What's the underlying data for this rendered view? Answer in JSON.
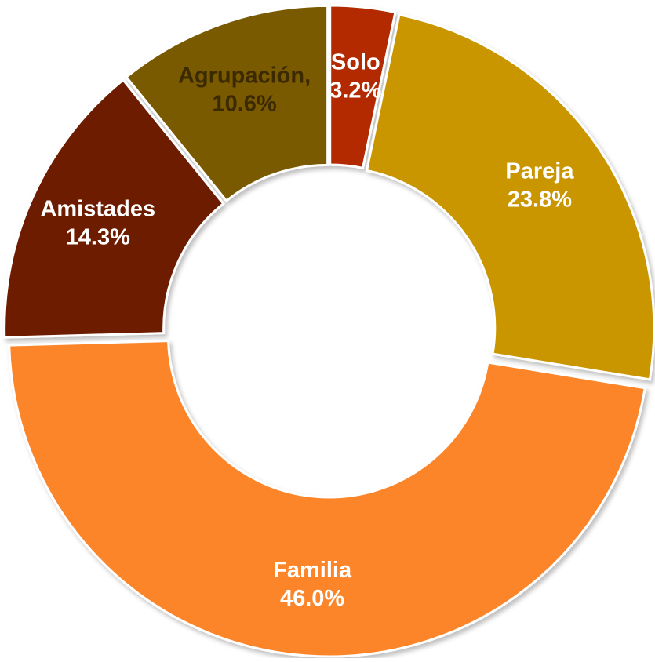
{
  "chart_data": {
    "type": "donut",
    "categories": [
      "Solo",
      "Pareja",
      "Familia",
      "Amistades",
      "Agrupación,"
    ],
    "values": [
      3.2,
      23.8,
      46.0,
      14.3,
      10.6
    ],
    "value_labels": [
      "3.2%",
      "23.8%",
      "46.0%",
      "14.3%",
      "10.6%"
    ],
    "colors": [
      "#b32c02",
      "#c99604",
      "#fc852a",
      "#6e1a01",
      "#7a5a02"
    ],
    "label_colors": [
      "#ffffff",
      "#ffffff",
      "#ffffff",
      "#ffffff",
      "#3b2a00"
    ]
  }
}
